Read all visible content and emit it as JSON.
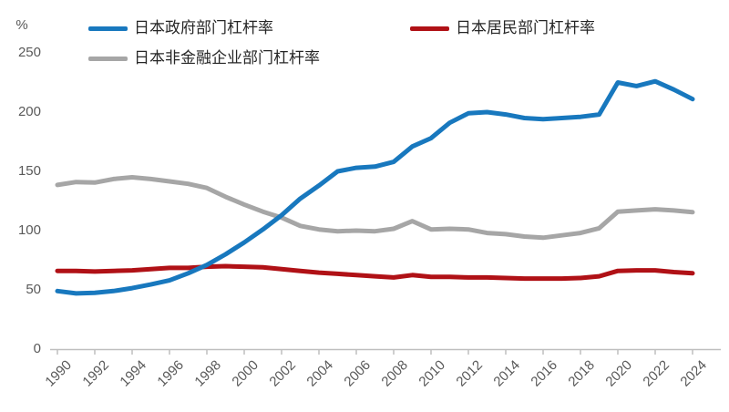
{
  "chart_data": {
    "type": "line",
    "title": "",
    "ylabel": "%",
    "xlabel": "",
    "ylim": [
      0,
      250
    ],
    "yticks": [
      0,
      50,
      100,
      150,
      200,
      250
    ],
    "x": [
      1990,
      1991,
      1992,
      1993,
      1994,
      1995,
      1996,
      1997,
      1998,
      1999,
      2000,
      2001,
      2002,
      2003,
      2004,
      2005,
      2006,
      2007,
      2008,
      2009,
      2010,
      2011,
      2012,
      2013,
      2014,
      2015,
      2016,
      2017,
      2018,
      2019,
      2020,
      2021,
      2022,
      2023,
      2024
    ],
    "x_tick_labels": [
      "1990",
      "1992",
      "1994",
      "1996",
      "1998",
      "2000",
      "2002",
      "2004",
      "2006",
      "2008",
      "2010",
      "2012",
      "2014",
      "2016",
      "2018",
      "2020",
      "2022",
      "2024"
    ],
    "grid": false,
    "legend_position": "top",
    "series": [
      {
        "name": "日本政府部门杠杆率",
        "color": "#1878BE",
        "values": [
          49,
          47,
          47.5,
          49,
          51.5,
          54.5,
          58,
          64,
          71,
          80,
          90,
          101,
          113,
          127,
          138,
          150,
          153,
          154,
          158,
          171,
          178,
          191,
          199,
          200,
          198,
          195,
          194,
          195,
          196,
          198,
          225,
          222,
          226,
          219,
          211
        ]
      },
      {
        "name": "日本居民部门杠杆率",
        "color": "#B01116",
        "values": [
          66,
          66,
          65.5,
          66,
          66.5,
          67.5,
          68.5,
          68.5,
          69.5,
          70,
          69.5,
          69,
          67.5,
          66,
          64.5,
          63.5,
          62.5,
          61.5,
          60.5,
          62.5,
          61,
          61,
          60.5,
          60.5,
          60,
          59.5,
          59.5,
          59.5,
          60,
          61.5,
          66,
          66.5,
          66.5,
          65,
          64
        ]
      },
      {
        "name": "日本非金融企业部门杠杆率",
        "color": "#A6A6A6",
        "values": [
          138.5,
          141,
          140.5,
          143.5,
          145,
          143.5,
          141.5,
          139.5,
          136,
          128.5,
          122,
          116,
          111,
          104,
          101,
          99.5,
          100,
          99.5,
          101.5,
          108,
          101,
          101.5,
          101,
          98,
          97,
          95,
          94,
          96,
          98,
          102,
          116,
          117,
          118,
          117,
          115.5
        ]
      }
    ],
    "axis_color": "#BFBFBF",
    "tick_label_color": "#595959",
    "legend_text_color": "#262626"
  }
}
